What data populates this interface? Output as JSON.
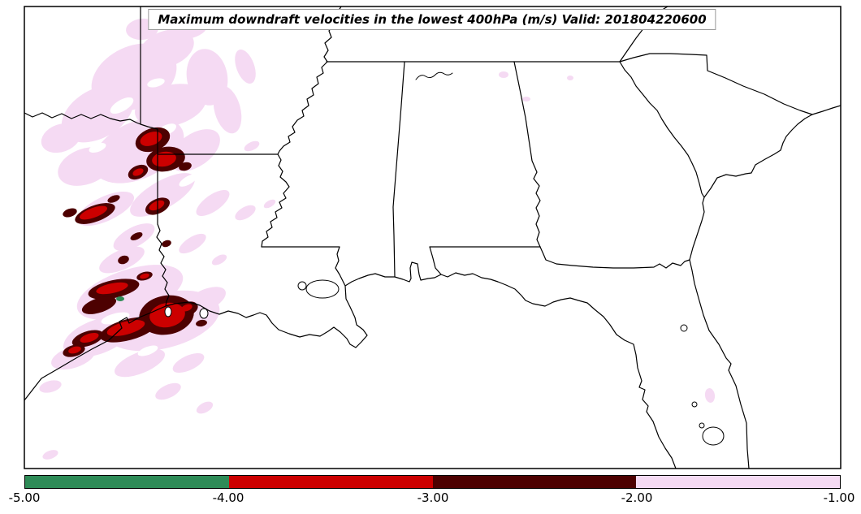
{
  "title": "Maximum downdraft velocities in the lowest 400hPa (m/s) Valid: 201804220600",
  "chart_data": {
    "type": "heatmap",
    "title": "Maximum downdraft velocities in the lowest 400hPa (m/s) Valid: 201804220600",
    "variable": "Maximum downdraft velocities in the lowest 400hPa",
    "units": "m/s",
    "valid": "201804220600",
    "map_region": "Southeastern United States with state outlines (east Texas and Arkansas to the Carolinas and Florida)",
    "visible_states": [
      "Texas (eastern)",
      "Oklahoma (corner)",
      "Arkansas",
      "Louisiana",
      "Mississippi",
      "Tennessee (southern edge)",
      "Alabama",
      "Georgia",
      "Florida",
      "South Carolina",
      "North Carolina (southern edge)"
    ],
    "colorbar": {
      "orientation": "horizontal",
      "position": "bottom",
      "tick_labels": [
        "-5.00",
        "-4.00",
        "-3.00",
        "-2.00",
        "-1.00"
      ],
      "tick_values": [
        -5.0,
        -4.0,
        -3.0,
        -2.0,
        -1.0
      ],
      "segments": [
        {
          "range_ms": [
            -5.0,
            -4.0
          ],
          "color": "#2e8b57",
          "color_name": "sea-green"
        },
        {
          "range_ms": [
            -4.0,
            -3.0
          ],
          "color": "#cc0000",
          "color_name": "red"
        },
        {
          "range_ms": [
            -3.0,
            -2.0
          ],
          "color": "#4d0101",
          "color_name": "dark-maroon"
        },
        {
          "range_ms": [
            -2.0,
            -1.0
          ],
          "color": "#f5daf3",
          "color_name": "pale-pink"
        }
      ]
    },
    "shaded_regions": [
      {
        "range_ms": [
          -2.0,
          -1.0
        ],
        "color": "#f5daf3",
        "description": "Broad streaky area of weaker downdrafts over northeast Texas, southwest Arkansas and western Louisiana, with small patches near the coast, in Alabama and near the Florida east coast"
      },
      {
        "range_ms": [
          -3.0,
          -2.0
        ],
        "color": "#4d0101",
        "description": "Dark patches clustered along the Texas-Louisiana border and near the upper Texas Gulf coast"
      },
      {
        "range_ms": [
          -4.0,
          -3.0
        ],
        "color": "#cc0000",
        "description": "Stronger downdraft cores embedded inside the dark patches"
      },
      {
        "range_ms": [
          -5.0,
          -4.0
        ],
        "color": "#2e8b57",
        "description": "Single small strongest core in southeast Texas near the coast"
      }
    ]
  }
}
